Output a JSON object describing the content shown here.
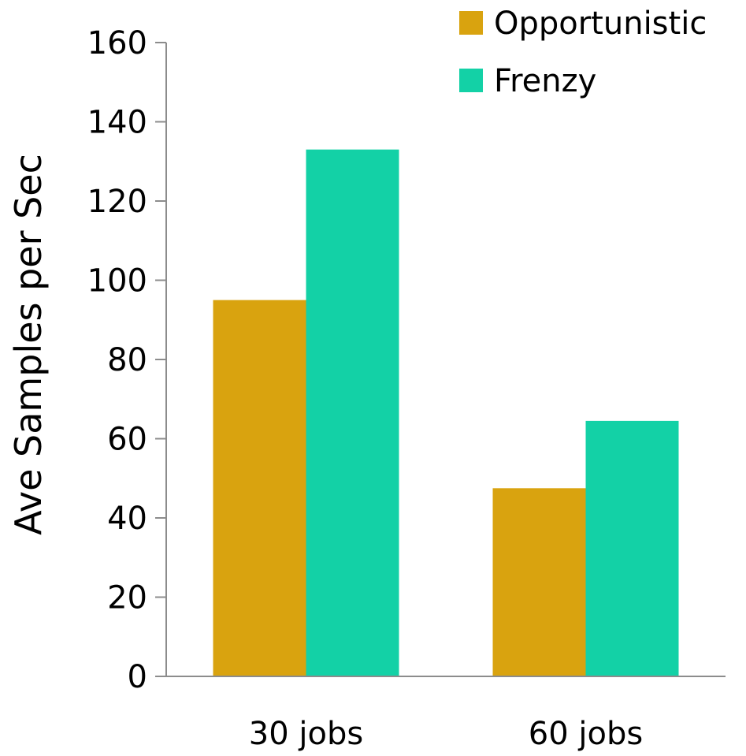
{
  "chart_data": {
    "type": "bar",
    "title": "",
    "xlabel": "",
    "ylabel": "Ave Samples per Sec",
    "categories": [
      "30 jobs",
      "60 jobs"
    ],
    "series": [
      {
        "name": "Opportunistic",
        "color": "#D9A30F",
        "values": [
          95,
          47.5
        ]
      },
      {
        "name": "Frenzy",
        "color": "#13D1A6",
        "values": [
          133,
          64.5
        ]
      }
    ],
    "ylim": [
      0,
      160
    ],
    "yticks": [
      0,
      20,
      40,
      60,
      80,
      100,
      120,
      140,
      160
    ],
    "grid": false,
    "legend_position": "top-right"
  }
}
